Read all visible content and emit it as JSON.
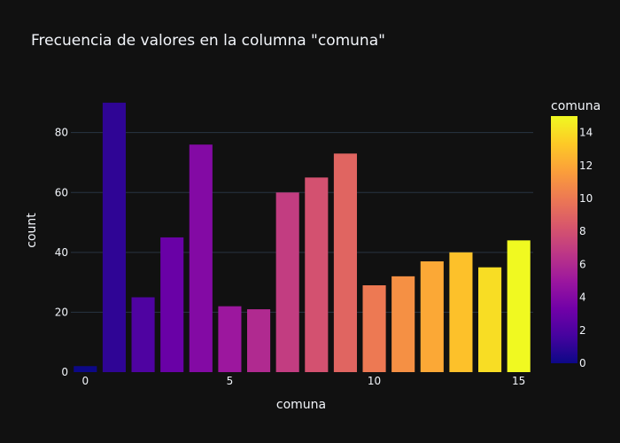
{
  "chart_data": {
    "type": "bar",
    "title": "Frecuencia de valores en la columna \"comuna\"",
    "xlabel": "comuna",
    "ylabel": "count",
    "x": [
      0,
      1,
      2,
      3,
      4,
      5,
      6,
      7,
      8,
      9,
      10,
      11,
      12,
      13,
      14,
      15
    ],
    "values": [
      2,
      90,
      25,
      45,
      76,
      22,
      21,
      60,
      65,
      73,
      29,
      32,
      37,
      40,
      35,
      44
    ],
    "xlim": [
      -0.5,
      15.5
    ],
    "ylim": [
      0,
      94.7
    ],
    "x_ticks": [
      0,
      5,
      10,
      15
    ],
    "y_ticks": [
      0,
      20,
      40,
      60,
      80
    ],
    "grid": true,
    "colorbar": {
      "title": "comuna",
      "range": [
        0,
        15
      ],
      "ticks": [
        0,
        2,
        4,
        6,
        8,
        10,
        12,
        14
      ],
      "colorscale": [
        "#0d0887",
        "#46039f",
        "#7201a8",
        "#9c179e",
        "#bd3786",
        "#d8576b",
        "#ed7953",
        "#fb9f3a",
        "#fdca26",
        "#f0f921"
      ]
    },
    "colors": {
      "background": "#111111",
      "grid": "#283442",
      "text": "#f2f5fa"
    }
  }
}
